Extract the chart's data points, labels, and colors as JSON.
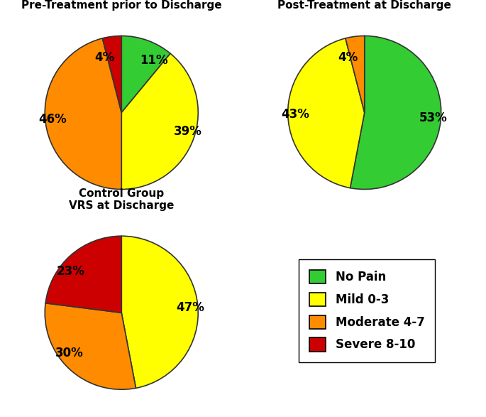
{
  "chart1": {
    "title": "InterX Group VRS\nPre-Treatment prior to Discharge",
    "values": [
      11,
      39,
      46,
      4
    ],
    "labels": [
      "11%",
      "39%",
      "46%",
      "4%"
    ],
    "colors": [
      "#33cc33",
      "#ffff00",
      "#ff8c00",
      "#cc0000"
    ],
    "startangle": 90
  },
  "chart2": {
    "title": "InterX Group VRS\nPost-Treatment at Discharge",
    "values": [
      53,
      43,
      4
    ],
    "labels": [
      "53%",
      "43%",
      "4%"
    ],
    "colors": [
      "#33cc33",
      "#ffff00",
      "#ff8c00"
    ],
    "startangle": 90
  },
  "chart3": {
    "title": "Control Group\nVRS at Discharge",
    "values": [
      47,
      30,
      23
    ],
    "labels": [
      "47%",
      "30%",
      "23%"
    ],
    "colors": [
      "#ffff00",
      "#ff8c00",
      "#cc0000"
    ],
    "startangle": 90
  },
  "legend_labels": [
    "No Pain",
    "Mild 0-3",
    "Moderate 4-7",
    "Severe 8-10"
  ],
  "legend_colors": [
    "#33cc33",
    "#ffff00",
    "#ff8c00",
    "#cc0000"
  ],
  "label_fontsize": 12,
  "title_fontsize": 11,
  "legend_fontsize": 12
}
